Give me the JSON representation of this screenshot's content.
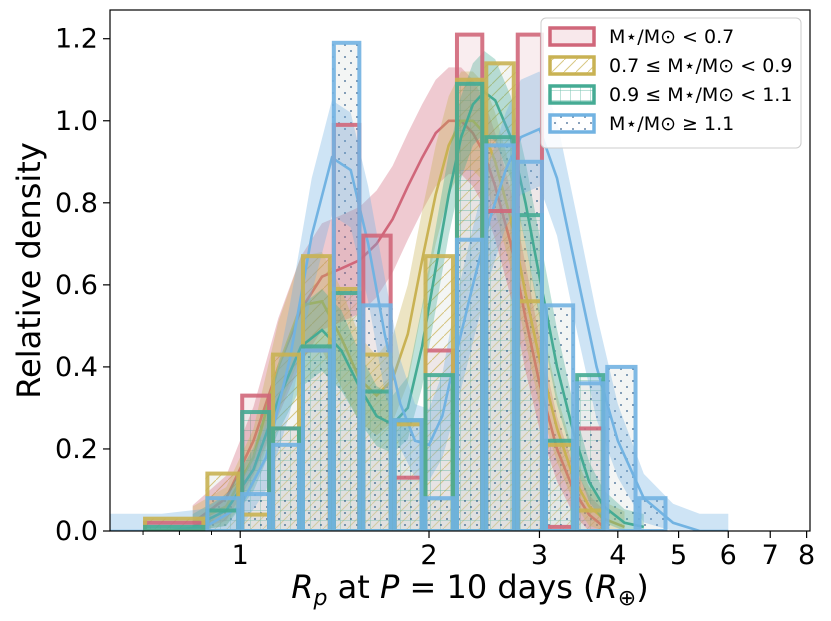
{
  "chart_data": {
    "type": "bar",
    "xscale": "log",
    "xlim": [
      0.62,
      8.1
    ],
    "ylim": [
      0,
      1.27
    ],
    "ylabel": "Relative density",
    "xlabel": {
      "math_var": "R",
      "math_sub": "p",
      "mid": " at ",
      "period_var": "P",
      "period_rest": " = 10 days (",
      "unit_var": "R",
      "unit_sub": "⊕",
      "end": ")"
    },
    "xticks": [
      {
        "v": 1,
        "label": "1"
      },
      {
        "v": 2,
        "label": "2"
      },
      {
        "v": 3,
        "label": "3"
      },
      {
        "v": 4,
        "label": "4"
      },
      {
        "v": 5,
        "label": "5"
      },
      {
        "v": 6,
        "label": "6"
      },
      {
        "v": 7,
        "label": "7"
      },
      {
        "v": 8,
        "label": "8"
      }
    ],
    "yticks": [
      {
        "v": 0.0,
        "label": "0.0"
      },
      {
        "v": 0.2,
        "label": "0.2"
      },
      {
        "v": 0.4,
        "label": "0.4"
      },
      {
        "v": 0.6,
        "label": "0.6"
      },
      {
        "v": 0.8,
        "label": "0.8"
      },
      {
        "v": 1.0,
        "label": "1.0"
      },
      {
        "v": 1.2,
        "label": "1.2"
      }
    ],
    "legend_position": "top-right",
    "series": [
      {
        "name": "M⋆/M⊙ < 0.7",
        "color": "#d0677a",
        "bins": [
          0.7,
          0.88,
          1.0,
          1.12,
          1.25,
          1.4,
          1.56,
          1.75,
          1.96,
          2.2,
          2.45,
          2.75,
          3.05,
          3.42,
          3.82,
          4.3,
          4.8,
          5.35,
          6.0
        ],
        "hist": [
          0.02,
          0.0,
          0.33,
          0.25,
          0.44,
          0.99,
          0.72,
          0.13,
          0.44,
          1.21,
          0.78,
          1.21,
          0.01,
          0.25,
          0.0,
          0.0,
          0.0,
          0.0
        ],
        "kde_x": [
          0.84,
          0.95,
          1.05,
          1.15,
          1.25,
          1.35,
          1.45,
          1.55,
          1.65,
          1.75,
          1.85,
          1.95,
          2.05,
          2.15,
          2.25,
          2.35,
          2.45,
          2.55,
          2.7,
          2.85,
          3.0,
          3.2,
          3.4,
          3.6,
          3.8
        ],
        "kde": [
          0.02,
          0.08,
          0.22,
          0.4,
          0.54,
          0.62,
          0.64,
          0.66,
          0.7,
          0.76,
          0.84,
          0.91,
          0.97,
          1.0,
          1.0,
          0.97,
          0.92,
          0.84,
          0.7,
          0.52,
          0.36,
          0.2,
          0.1,
          0.04,
          0.01
        ],
        "band": 0.13
      },
      {
        "name": "0.7 ≤ M⋆/M⊙ < 0.9",
        "color": "#c9b253",
        "bins": [
          0.7,
          0.88,
          1.0,
          1.12,
          1.25,
          1.4,
          1.56,
          1.75,
          1.96,
          2.2,
          2.45,
          2.75,
          3.05,
          3.42,
          3.82,
          4.3,
          4.8,
          5.35,
          6.0
        ],
        "hist": [
          0.03,
          0.14,
          0.04,
          0.43,
          0.67,
          0.59,
          0.43,
          0.26,
          0.67,
          1.1,
          1.14,
          0.56,
          0.21,
          0.05,
          0.0,
          0.0,
          0.0,
          0.0
        ],
        "kde_x": [
          0.84,
          0.95,
          1.05,
          1.15,
          1.25,
          1.35,
          1.45,
          1.55,
          1.65,
          1.75,
          1.85,
          1.95,
          2.05,
          2.15,
          2.25,
          2.35,
          2.45,
          2.55,
          2.7,
          2.85,
          3.0,
          3.2,
          3.4,
          3.6,
          3.8,
          4.1
        ],
        "kde": [
          0.02,
          0.06,
          0.18,
          0.4,
          0.55,
          0.56,
          0.47,
          0.37,
          0.33,
          0.37,
          0.48,
          0.66,
          0.82,
          0.94,
          1.0,
          1.0,
          0.97,
          0.9,
          0.76,
          0.58,
          0.42,
          0.25,
          0.13,
          0.06,
          0.03,
          0.01
        ],
        "band": 0.12
      },
      {
        "name": "0.9 ≤ M⋆/M⊙ < 1.1",
        "color": "#45ab94",
        "bins": [
          0.7,
          0.88,
          1.0,
          1.12,
          1.25,
          1.4,
          1.56,
          1.75,
          1.96,
          2.2,
          2.45,
          2.75,
          3.05,
          3.42,
          3.82,
          4.3,
          4.8,
          5.35,
          6.0
        ],
        "hist": [
          0.01,
          0.05,
          0.29,
          0.25,
          0.45,
          0.58,
          0.34,
          0.27,
          0.38,
          1.09,
          0.96,
          0.77,
          0.22,
          0.38,
          0.0,
          0.0,
          0.0,
          0.0
        ],
        "kde_x": [
          0.84,
          0.95,
          1.05,
          1.15,
          1.25,
          1.35,
          1.45,
          1.55,
          1.65,
          1.75,
          1.85,
          1.95,
          2.05,
          2.15,
          2.25,
          2.35,
          2.45,
          2.55,
          2.7,
          2.85,
          3.0,
          3.2,
          3.4,
          3.6,
          3.8,
          4.1,
          4.4
        ],
        "kde": [
          0.01,
          0.05,
          0.15,
          0.32,
          0.45,
          0.49,
          0.44,
          0.35,
          0.28,
          0.26,
          0.3,
          0.45,
          0.64,
          0.82,
          0.96,
          1.04,
          1.07,
          1.05,
          0.96,
          0.8,
          0.62,
          0.4,
          0.24,
          0.12,
          0.06,
          0.02,
          0.01
        ],
        "band": 0.1
      },
      {
        "name": "M⋆/M⊙ ≥ 1.1",
        "color": "#72b3e2",
        "bins": [
          0.7,
          0.88,
          1.0,
          1.12,
          1.25,
          1.4,
          1.56,
          1.75,
          1.96,
          2.2,
          2.45,
          2.75,
          3.05,
          3.42,
          3.82,
          4.3,
          4.8,
          5.35,
          6.0
        ],
        "hist": [
          0.0,
          0.08,
          0.09,
          0.21,
          0.44,
          1.19,
          0.55,
          0.27,
          0.08,
          0.71,
          0.94,
          0.9,
          0.55,
          0.36,
          0.4,
          0.08,
          0.0,
          0.0
        ],
        "kde_x": [
          0.62,
          0.75,
          0.88,
          1.0,
          1.1,
          1.2,
          1.3,
          1.4,
          1.5,
          1.6,
          1.7,
          1.8,
          1.9,
          2.0,
          2.1,
          2.2,
          2.35,
          2.5,
          2.65,
          2.8,
          3.0,
          3.2,
          3.45,
          3.7,
          4.0,
          4.4,
          4.9,
          5.4,
          6.0
        ],
        "kde": [
          0.0,
          0.0,
          0.01,
          0.06,
          0.18,
          0.42,
          0.72,
          0.91,
          0.88,
          0.7,
          0.48,
          0.31,
          0.22,
          0.21,
          0.28,
          0.42,
          0.6,
          0.76,
          0.88,
          0.96,
          0.98,
          0.86,
          0.62,
          0.4,
          0.22,
          0.08,
          0.02,
          0.0,
          0.0
        ],
        "band": 0.14
      }
    ]
  }
}
